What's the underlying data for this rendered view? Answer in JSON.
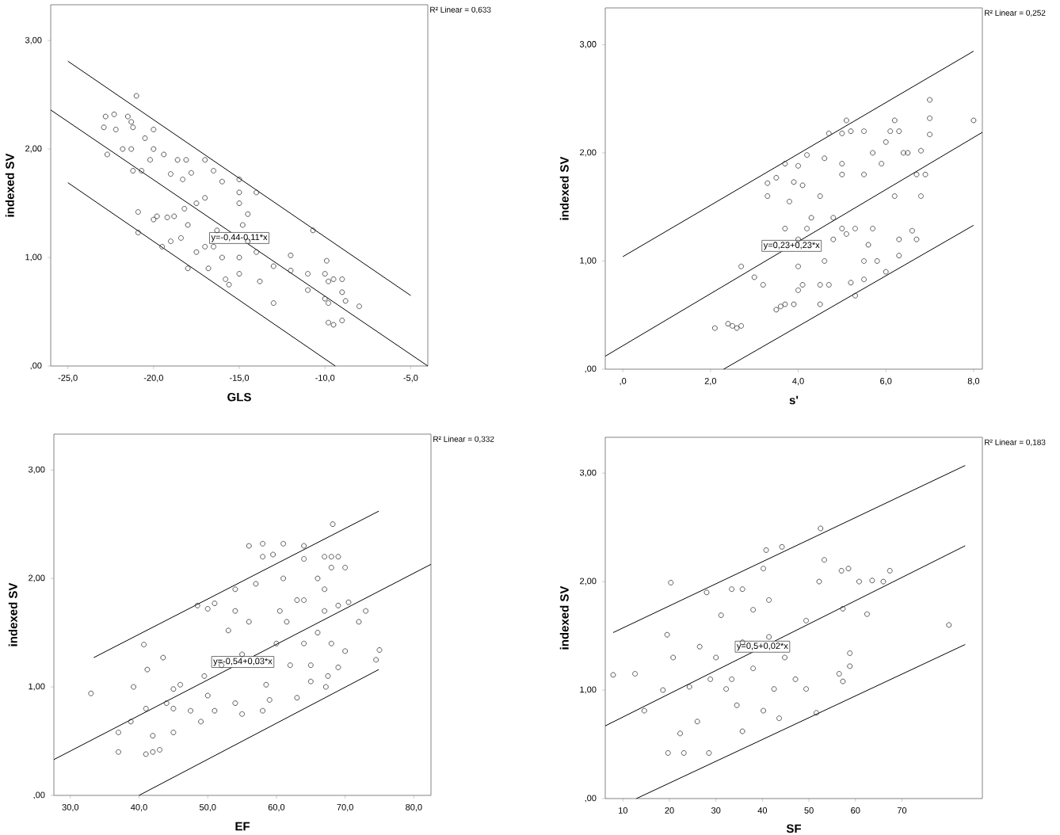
{
  "chart_data": [
    {
      "type": "scatter",
      "xlabel": "GLS",
      "ylabel": "indexed SV",
      "xlim": [
        -26.0,
        -4.0
      ],
      "ylim": [
        0,
        3.33
      ],
      "xticks": [
        {
          "value": -25,
          "label": "-25,0"
        },
        {
          "value": -20,
          "label": "-20,0"
        },
        {
          "value": -15,
          "label": "-15,0"
        },
        {
          "value": -10,
          "label": "-10,0"
        },
        {
          "value": -5,
          "label": "-5,0"
        }
      ],
      "yticks": [
        {
          "value": 0,
          "label": ",00"
        },
        {
          "value": 1,
          "label": "1,00"
        },
        {
          "value": 2,
          "label": "2,00"
        },
        {
          "value": 3,
          "label": "3,00"
        }
      ],
      "annotations": [
        "R² Linear = 0,633",
        {
          "text": "y=-0,44-0,11*x",
          "x": -15.0,
          "y": 1.18
        }
      ],
      "series": [
        {
          "marker": "circle",
          "color": "#333333",
          "x": [
            -21.0,
            -22.8,
            -22.3,
            -21.5,
            -21.3,
            -22.9,
            -22.2,
            -21.2,
            -20.0,
            -22.7,
            -21.8,
            -21.3,
            -20.5,
            -20.0,
            -19.4,
            -20.2,
            -20.7,
            -21.2,
            -18.6,
            -18.1,
            -17.0,
            -16.5,
            -16.0,
            -15.0,
            -15.0,
            -14.0,
            -17.8,
            -19.0,
            -18.3,
            -19.8,
            -19.2,
            -18.8,
            -18.2,
            -17.5,
            -17.0,
            -19.5,
            -19.0,
            -18.4,
            -18.0,
            -17.5,
            -17.0,
            -16.5,
            -16.0,
            -15.8,
            -15.6,
            -16.3,
            -15.0,
            -15.0,
            -14.5,
            -14.0,
            -13.8,
            -13.0,
            -13.0,
            -12.0,
            -12.0,
            -11.0,
            -11.0,
            -10.7,
            -9.9,
            -10.0,
            -9.8,
            -9.5,
            -9.0,
            -9.0,
            -10.0,
            -9.8,
            -9.8,
            -9.5,
            -9.0,
            -8.8,
            -8.0,
            -20.9,
            -20.9,
            -18.0,
            -16.8,
            -14.5,
            -15.0,
            -14.8,
            -20.0
          ],
          "values": [
            2.49,
            2.3,
            2.32,
            2.3,
            2.25,
            2.2,
            2.18,
            2.2,
            2.18,
            1.95,
            2.0,
            2.0,
            2.1,
            2.0,
            1.95,
            1.9,
            1.8,
            1.8,
            1.9,
            1.9,
            1.9,
            1.8,
            1.7,
            1.72,
            1.6,
            1.6,
            1.78,
            1.77,
            1.72,
            1.38,
            1.37,
            1.38,
            1.45,
            1.5,
            1.55,
            1.1,
            1.15,
            1.18,
            1.3,
            1.05,
            1.1,
            1.1,
            1.0,
            0.8,
            0.75,
            1.25,
            1.0,
            0.85,
            1.4,
            1.05,
            0.78,
            0.92,
            0.58,
            1.02,
            0.88,
            0.85,
            0.7,
            1.25,
            0.97,
            0.85,
            0.78,
            0.8,
            0.8,
            0.68,
            0.62,
            0.58,
            0.4,
            0.38,
            0.42,
            0.6,
            0.55,
            1.42,
            1.23,
            0.9,
            0.9,
            1.15,
            1.5,
            1.3,
            1.35
          ]
        },
        {
          "type": "line",
          "color": "#000000",
          "x": [
            -26.0,
            -4.0
          ],
          "values": [
            2.36,
            0.0
          ]
        },
        {
          "type": "line",
          "color": "#000000",
          "x": [
            -25.0,
            -5.0
          ],
          "values": [
            2.81,
            0.65
          ]
        },
        {
          "type": "line",
          "color": "#000000",
          "x": [
            -25.0,
            -9.4
          ],
          "values": [
            1.69,
            0.0
          ]
        }
      ]
    },
    {
      "type": "scatter",
      "xlabel": "s'",
      "ylabel": "indexed SV",
      "xlim": [
        -0.4,
        8.2
      ],
      "ylim": [
        0,
        3.34
      ],
      "xticks": [
        {
          "value": 0,
          "label": ",0"
        },
        {
          "value": 2,
          "label": "2,0"
        },
        {
          "value": 4,
          "label": "4,0"
        },
        {
          "value": 6,
          "label": "6,0"
        },
        {
          "value": 8,
          "label": "8,0"
        }
      ],
      "yticks": [
        {
          "value": 0,
          "label": ",00"
        },
        {
          "value": 1,
          "label": "1,00"
        },
        {
          "value": 2,
          "label": "2,00"
        },
        {
          "value": 3,
          "label": "3,00"
        }
      ],
      "annotations": [
        "R² Linear = 0,252",
        {
          "text": "y=0,23+0,23*x",
          "x": 3.85,
          "y": 1.14
        }
      ],
      "series": [
        {
          "marker": "circle",
          "color": "#333333",
          "x": [
            2.1,
            2.4,
            2.5,
            2.7,
            2.6,
            3.0,
            3.2,
            2.7,
            3.3,
            3.3,
            3.5,
            3.7,
            3.5,
            3.6,
            3.7,
            3.9,
            3.8,
            3.9,
            4.0,
            4.2,
            4.1,
            3.7,
            4.0,
            4.0,
            4.1,
            4.0,
            4.3,
            4.5,
            4.6,
            4.5,
            4.5,
            4.7,
            4.6,
            4.8,
            4.7,
            5.0,
            5.1,
            5.2,
            5.5,
            5.0,
            5.0,
            5.0,
            5.1,
            5.3,
            5.2,
            5.3,
            5.5,
            5.6,
            5.7,
            5.5,
            5.7,
            5.9,
            6.0,
            6.1,
            6.2,
            6.3,
            6.4,
            6.5,
            6.8,
            7.0,
            7.0,
            7.0,
            6.7,
            6.9,
            6.8,
            6.2,
            6.3,
            6.6,
            6.3,
            6.0,
            5.8,
            5.5,
            6.7,
            8.0,
            4.8,
            4.2
          ],
          "values": [
            0.38,
            0.42,
            0.4,
            0.4,
            0.38,
            0.85,
            0.78,
            0.95,
            1.72,
            1.6,
            1.77,
            1.9,
            0.55,
            0.58,
            0.6,
            0.6,
            1.55,
            1.73,
            1.88,
            1.98,
            1.7,
            1.3,
            1.2,
            0.95,
            0.78,
            0.73,
            1.4,
            1.6,
            1.95,
            0.6,
            0.78,
            0.78,
            1.0,
            1.2,
            2.18,
            2.18,
            2.3,
            2.2,
            2.2,
            1.9,
            1.8,
            1.3,
            1.25,
            1.3,
            0.8,
            0.68,
            1.0,
            1.15,
            1.3,
            1.8,
            2.0,
            1.9,
            2.1,
            2.2,
            2.3,
            2.2,
            2.0,
            2.0,
            2.02,
            2.49,
            2.32,
            2.17,
            1.8,
            1.8,
            1.6,
            1.6,
            1.2,
            1.28,
            1.05,
            0.9,
            1.0,
            0.83,
            1.2,
            2.3,
            1.4,
            1.3
          ]
        },
        {
          "type": "line",
          "color": "#000000",
          "x": [
            -0.4,
            8.2
          ],
          "values": [
            0.12,
            2.19
          ]
        },
        {
          "type": "line",
          "color": "#000000",
          "x": [
            0.0,
            8.0
          ],
          "values": [
            1.04,
            2.94
          ]
        },
        {
          "type": "line",
          "color": "#000000",
          "x": [
            2.3,
            8.0
          ],
          "values": [
            0.0,
            1.33
          ]
        }
      ]
    },
    {
      "type": "scatter",
      "xlabel": "EF",
      "ylabel": "indexed SV",
      "xlim": [
        27.6,
        82.5
      ],
      "ylim": [
        0,
        3.33
      ],
      "xticks": [
        {
          "value": 30,
          "label": "30,0"
        },
        {
          "value": 40,
          "label": "40,0"
        },
        {
          "value": 50,
          "label": "50,0"
        },
        {
          "value": 60,
          "label": "60,0"
        },
        {
          "value": 70,
          "label": "70,0"
        },
        {
          "value": 80,
          "label": "80,0"
        }
      ],
      "yticks": [
        {
          "value": 0,
          "label": ",00"
        },
        {
          "value": 1,
          "label": "1,00"
        },
        {
          "value": 2,
          "label": "2,00"
        },
        {
          "value": 3,
          "label": "3,00"
        }
      ],
      "annotations": [
        "R² Linear = 0,332",
        {
          "text": "y=-0,54+0,03*x",
          "x": 55.1,
          "y": 1.23
        }
      ],
      "series": [
        {
          "marker": "circle",
          "color": "#333333",
          "x": [
            33.0,
            37.0,
            37.0,
            38.8,
            39.2,
            40.7,
            41.2,
            41.0,
            41.0,
            42.0,
            42.0,
            43.0,
            43.5,
            44.0,
            45.0,
            45.0,
            45.0,
            46.0,
            47.5,
            48.5,
            49.0,
            49.5,
            50.0,
            50.0,
            51.0,
            51.0,
            52.0,
            53.0,
            54.0,
            54.0,
            54.0,
            55.0,
            55.0,
            56.0,
            56.0,
            57.0,
            58.0,
            58.0,
            58.5,
            58.0,
            59.0,
            59.5,
            60.0,
            60.5,
            61.0,
            61.0,
            61.5,
            62.0,
            63.0,
            63.0,
            64.0,
            64.0,
            64.0,
            64.0,
            65.0,
            65.0,
            66.0,
            66.0,
            67.0,
            67.0,
            67.0,
            67.5,
            68.0,
            68.0,
            68.0,
            68.2,
            69.0,
            69.0,
            69.0,
            70.0,
            70.5,
            70.0,
            72.0,
            73.0,
            74.5,
            75.0,
            67.2
          ],
          "values": [
            0.94,
            0.58,
            0.4,
            0.68,
            1.0,
            1.39,
            1.16,
            0.8,
            0.38,
            0.55,
            0.4,
            0.42,
            1.27,
            0.85,
            0.8,
            0.58,
            0.98,
            1.02,
            0.78,
            1.75,
            0.68,
            1.1,
            1.72,
            0.92,
            0.78,
            1.77,
            1.2,
            1.52,
            1.9,
            1.7,
            0.85,
            0.75,
            1.3,
            2.3,
            1.6,
            1.95,
            2.32,
            2.2,
            1.02,
            0.78,
            0.88,
            2.22,
            1.4,
            1.7,
            2.32,
            2.0,
            1.6,
            1.2,
            0.9,
            1.8,
            2.3,
            2.18,
            1.8,
            1.4,
            1.2,
            1.05,
            2.0,
            1.5,
            2.2,
            1.9,
            1.7,
            1.1,
            2.1,
            2.2,
            1.4,
            2.5,
            2.2,
            1.75,
            1.18,
            2.1,
            1.78,
            1.33,
            1.6,
            1.7,
            1.25,
            1.34,
            1.0
          ]
        },
        {
          "type": "line",
          "color": "#000000",
          "x": [
            27.6,
            82.5
          ],
          "values": [
            0.33,
            2.13
          ]
        },
        {
          "type": "line",
          "color": "#000000",
          "x": [
            33.4,
            74.9
          ],
          "values": [
            1.27,
            2.62
          ]
        },
        {
          "type": "line",
          "color": "#000000",
          "x": [
            40.0,
            74.9
          ],
          "values": [
            0.0,
            1.16
          ]
        }
      ]
    },
    {
      "type": "scatter",
      "xlabel": "SF",
      "ylabel": "indexed SV",
      "xlim": [
        6.2,
        87.3
      ],
      "ylim": [
        0,
        3.33
      ],
      "xticks": [
        10,
        20,
        30,
        40,
        50,
        60,
        70
      ],
      "yticks": [
        {
          "value": 0,
          "label": ",00"
        },
        {
          "value": 1,
          "label": "1,00"
        },
        {
          "value": 2,
          "label": "2,00"
        },
        {
          "value": 3,
          "label": "3,00"
        }
      ],
      "annotations": [
        "R² Linear = 0,183",
        {
          "text": "y=0,5+0,02*x",
          "x": 40.0,
          "y": 1.4
        }
      ],
      "series": [
        {
          "marker": "circle",
          "color": "#333333",
          "x": [
            7.9,
            12.6,
            14.6,
            20.3,
            19.5,
            18.6,
            20.8,
            19.7,
            22.3,
            23.1,
            26.0,
            28.5,
            28.0,
            30.0,
            26.5,
            33.4,
            35.7,
            40.8,
            44.2,
            52.5,
            53.3,
            57.0,
            58.5,
            52.2,
            60.8,
            63.6,
            66.0,
            67.4,
            62.5,
            57.3,
            58.8,
            58.8,
            56.5,
            57.3,
            80.1,
            51.6,
            35.7,
            43.6,
            47.1,
            49.4,
            38.0,
            41.4,
            40.2,
            35.7,
            33.4,
            34.5,
            42.5,
            38.0,
            31.1,
            32.2,
            41.4,
            44.8,
            49.4,
            40.2,
            28.8,
            24.3
          ],
          "values": [
            1.14,
            1.15,
            0.81,
            1.99,
            1.51,
            1.0,
            1.3,
            0.42,
            0.6,
            0.42,
            0.71,
            0.42,
            1.9,
            1.3,
            1.4,
            1.93,
            1.93,
            2.29,
            2.32,
            2.49,
            2.2,
            2.1,
            2.12,
            2.0,
            2.0,
            2.01,
            2.0,
            2.1,
            1.7,
            1.75,
            1.34,
            1.22,
            1.15,
            1.08,
            1.6,
            0.79,
            0.62,
            0.74,
            1.1,
            1.01,
            1.74,
            1.83,
            0.81,
            1.44,
            1.1,
            0.86,
            1.01,
            1.2,
            1.69,
            1.01,
            1.49,
            1.3,
            1.64,
            2.12,
            1.1,
            1.03
          ]
        },
        {
          "type": "line",
          "color": "#000000",
          "x": [
            6.2,
            83.6
          ],
          "values": [
            0.67,
            2.33
          ]
        },
        {
          "type": "line",
          "color": "#000000",
          "x": [
            7.9,
            83.6
          ],
          "values": [
            1.53,
            3.07
          ]
        },
        {
          "type": "line",
          "color": "#000000",
          "x": [
            12.9,
            83.6
          ],
          "values": [
            0.0,
            1.42
          ]
        }
      ]
    }
  ]
}
